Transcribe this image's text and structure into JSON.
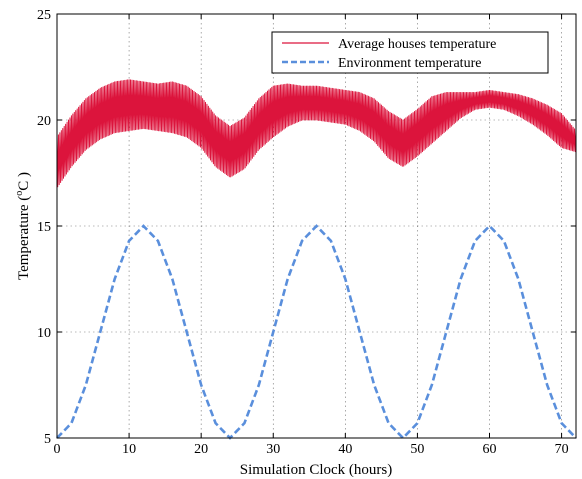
{
  "chart_data": {
    "type": "line",
    "xlabel": "Simulation Clock (hours)",
    "ylabel_prefix": "Temperature (",
    "ylabel_sup": "o",
    "ylabel_suffix": "C )",
    "xlim": [
      0,
      72
    ],
    "ylim": [
      5,
      25
    ],
    "xticks": [
      "0",
      "10",
      "20",
      "30",
      "40",
      "50",
      "60",
      "70"
    ],
    "yticks": [
      "5",
      "10",
      "15",
      "20",
      "25"
    ],
    "grid": true,
    "legend_position": "top-right",
    "series": [
      {
        "name": "Average houses temperature",
        "color": "#dc143c",
        "style": "solid",
        "style_note": "rapid oscillation (about +/-1.2 C) around a slowly varying mean",
        "x": [
          0,
          2,
          4,
          6,
          8,
          10,
          12,
          14,
          16,
          18,
          20,
          22,
          24,
          26,
          28,
          30,
          32,
          34,
          36,
          38,
          40,
          42,
          44,
          46,
          48,
          50,
          52,
          54,
          56,
          58,
          60,
          62,
          64,
          66,
          68,
          70,
          72
        ],
        "y": [
          18.0,
          19.0,
          19.8,
          20.3,
          20.6,
          20.7,
          20.7,
          20.6,
          20.6,
          20.4,
          19.9,
          19.0,
          18.5,
          18.9,
          19.8,
          20.4,
          20.7,
          20.8,
          20.8,
          20.7,
          20.6,
          20.4,
          20.0,
          19.3,
          18.9,
          19.4,
          20.0,
          20.4,
          20.7,
          20.9,
          21.0,
          20.9,
          20.7,
          20.4,
          20.0,
          19.5,
          19.0
        ],
        "amplitude": [
          1.2,
          1.2,
          1.2,
          1.2,
          1.2,
          1.2,
          1.1,
          1.1,
          1.2,
          1.2,
          1.2,
          1.2,
          1.2,
          1.2,
          1.2,
          1.2,
          1.0,
          0.8,
          0.8,
          0.8,
          0.8,
          0.9,
          1.0,
          1.1,
          1.1,
          1.1,
          1.1,
          0.9,
          0.6,
          0.4,
          0.4,
          0.4,
          0.5,
          0.6,
          0.7,
          0.8,
          0.5
        ]
      },
      {
        "name": "Environment temperature",
        "color": "#5a8fdc",
        "style": "dashed",
        "x": [
          0,
          2,
          4,
          6,
          8,
          10,
          12,
          14,
          16,
          18,
          20,
          22,
          24,
          26,
          28,
          30,
          32,
          34,
          36,
          38,
          40,
          42,
          44,
          46,
          48,
          50,
          52,
          54,
          56,
          58,
          60,
          62,
          64,
          66,
          68,
          70,
          72
        ],
        "y": [
          5.0,
          5.7,
          7.5,
          10.0,
          12.5,
          14.3,
          15.0,
          14.3,
          12.5,
          10.0,
          7.5,
          5.7,
          5.0,
          5.7,
          7.5,
          10.0,
          12.5,
          14.3,
          15.0,
          14.3,
          12.5,
          10.0,
          7.5,
          5.7,
          5.0,
          5.7,
          7.5,
          10.0,
          12.5,
          14.3,
          15.0,
          14.3,
          12.5,
          10.0,
          7.5,
          5.7,
          5.0
        ]
      }
    ]
  }
}
